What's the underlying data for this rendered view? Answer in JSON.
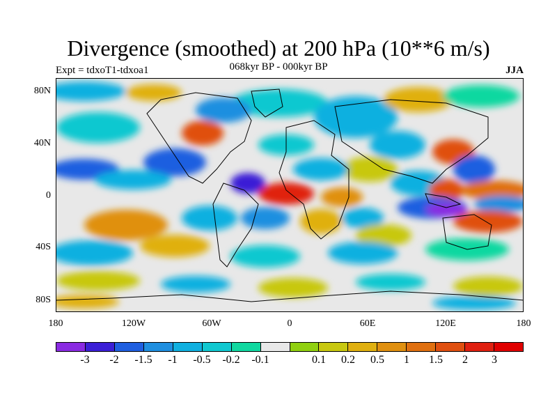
{
  "title": "Divergence (smoothed) at 200 hPa (10**6 m/s)",
  "subtitle": "068kyr BP - 000kyr BP",
  "experiment": "Expt = tdxoT1-tdxoa1",
  "season": "JJA",
  "lat_labels": [
    "80N",
    "40N",
    "0",
    "40S",
    "80S"
  ],
  "lon_labels": [
    "180",
    "120W",
    "60W",
    "0",
    "60E",
    "120E",
    "180"
  ],
  "colorbar": {
    "colors": [
      "#8a2be2",
      "#3b1fd6",
      "#1f5fe0",
      "#1f8fe0",
      "#10b0e0",
      "#10c8d0",
      "#10d8a0",
      "#e8e8e8",
      "#90d010",
      "#c8c810",
      "#e0b010",
      "#e09010",
      "#e07010",
      "#e05010",
      "#e02010",
      "#e00000"
    ],
    "labels": [
      "-3",
      "-2",
      "-1.5",
      "-1",
      "-0.5",
      "-0.2",
      "-0.1",
      "0.1",
      "0.2",
      "0.5",
      "1",
      "1.5",
      "2",
      "3"
    ]
  }
}
